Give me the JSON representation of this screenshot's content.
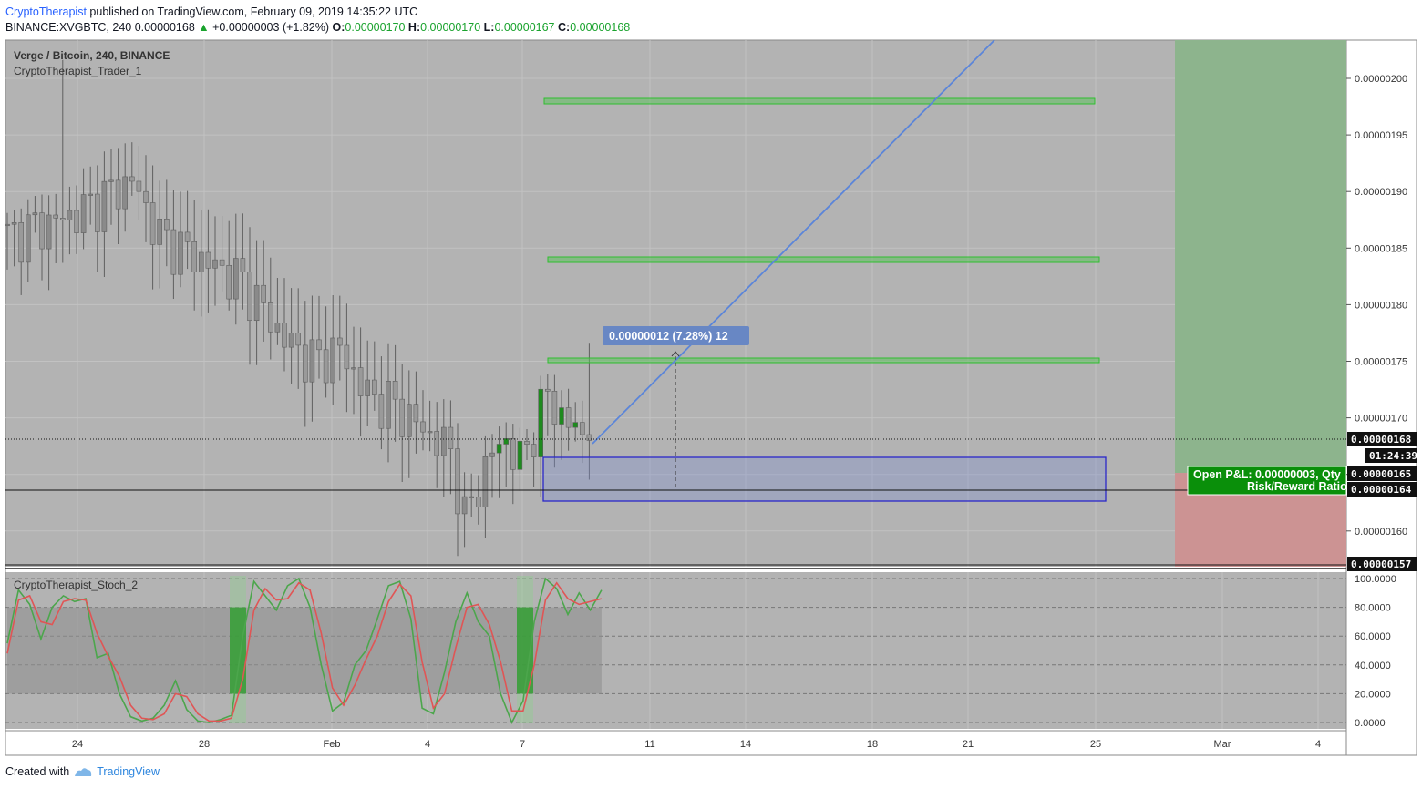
{
  "header": {
    "author": "CryptoTherapist",
    "published_text": "published on TradingView.com, February 09, 2019 14:35:22 UTC",
    "symbol": "BINANCE:XVGBTC, 240",
    "last": "0.00000168",
    "change": "+0.00000003 (+1.82%)",
    "o_label": "O:",
    "o": "0.00000170",
    "h_label": "H:",
    "h": "0.00000170",
    "l_label": "L:",
    "l": "0.00000167",
    "c_label": "C:",
    "c": "0.00000168"
  },
  "pane_main": {
    "title": "Verge / Bitcoin, 240, BINANCE",
    "indicator": "CryptoTherapist_Trader_1"
  },
  "pane_stoch": {
    "indicator": "CryptoTherapist_Stoch_2"
  },
  "annotations": {
    "measure_label": "0.00000012 (7.28%) 12",
    "pnl_line1": "Open P&L: 0.00000003, Qty",
    "pnl_line2": "Risk/Reward Ratio",
    "countdown": "01:24:39",
    "price_tag_last": "0.00000168",
    "price_tag_entry": "0.00000164",
    "price_tag_stop": "0.00000157",
    "price_tag_pos": "0.00000165"
  },
  "footer": {
    "created_with": "Created with",
    "brand": "TradingView"
  },
  "colors": {
    "bull": "#1e8a1e",
    "bear": "#6e6e6e",
    "pane_bg": "#b3b3b3",
    "green_line": "#39c13a",
    "trend_line": "#5b85d9",
    "zone": "#2a27c9",
    "stoch_k": "#4ca64c",
    "stoch_d": "#e05555",
    "profit": "#8db48d",
    "loss": "#cc9393"
  },
  "chart_data": [
    {
      "type": "candlestick",
      "title": "Verge / Bitcoin, 240, BINANCE",
      "x_ticks": [
        "24",
        "28",
        "Feb",
        "4",
        "7",
        "11",
        "14",
        "18",
        "21",
        "25",
        "Mar",
        "4"
      ],
      "y_ticks": [
        "0.00000200",
        "0.00000195",
        "0.00000190",
        "0.00000185",
        "0.00000180",
        "0.00000175",
        "0.00000170",
        "0.00000165",
        "0.00000160"
      ],
      "ylim": [
        1.568e-06,
        2.034e-06
      ],
      "approx_close_path": [
        [
          0,
          186
        ],
        [
          10,
          188
        ],
        [
          18,
          191
        ],
        [
          22,
          186
        ],
        [
          28,
          184
        ],
        [
          34,
          182
        ],
        [
          40,
          177
        ],
        [
          44,
          175
        ],
        [
          48,
          176
        ],
        [
          52,
          172
        ],
        [
          56,
          171
        ],
        [
          58,
          170
        ],
        [
          62,
          168
        ],
        [
          64,
          167
        ],
        [
          66,
          161
        ],
        [
          68,
          164
        ],
        [
          70,
          167
        ],
        [
          72,
          168
        ],
        [
          74,
          166
        ],
        [
          76,
          169
        ],
        [
          78,
          172
        ],
        [
          80,
          170
        ],
        [
          84,
          168
        ]
      ],
      "levels": {
        "last_price": 1.68e-06,
        "entry": 1.64e-06,
        "stop": 1.57e-06,
        "target_1": 1.75e-06,
        "target_2": 1.84e-06,
        "target_3": 1.98e-06
      },
      "zone": [
        1.63e-06,
        1.67e-06
      ],
      "measure": "0.00000012 (7.28%) 12"
    },
    {
      "type": "line",
      "title": "CryptoTherapist_Stoch_2",
      "y_ticks": [
        "100.0000",
        "80.0000",
        "60.0000",
        "40.0000",
        "20.0000",
        "0.0000"
      ],
      "ylim": [
        0,
        100
      ],
      "band": [
        20,
        80
      ],
      "series": [
        {
          "values": [
            55,
            92,
            82,
            58,
            80,
            88,
            84,
            86,
            45,
            48,
            20,
            4,
            1,
            3,
            12,
            29,
            9,
            1,
            0,
            2,
            5,
            60,
            98,
            88,
            78,
            95,
            100,
            80,
            40,
            8,
            14,
            40,
            50,
            72,
            95,
            98,
            72,
            10,
            6,
            35,
            70,
            90,
            70,
            60,
            20,
            0,
            15,
            70,
            100,
            93,
            75,
            90,
            78,
            92
          ]
        },
        {
          "values": [
            48,
            85,
            88,
            70,
            68,
            84,
            86,
            85,
            62,
            46,
            32,
            12,
            3,
            2,
            6,
            20,
            18,
            6,
            1,
            1,
            3,
            30,
            78,
            93,
            85,
            86,
            97,
            92,
            62,
            24,
            12,
            26,
            44,
            60,
            84,
            96,
            88,
            42,
            10,
            20,
            52,
            80,
            82,
            68,
            42,
            8,
            8,
            40,
            85,
            97,
            86,
            82,
            84,
            86
          ]
        }
      ]
    }
  ]
}
